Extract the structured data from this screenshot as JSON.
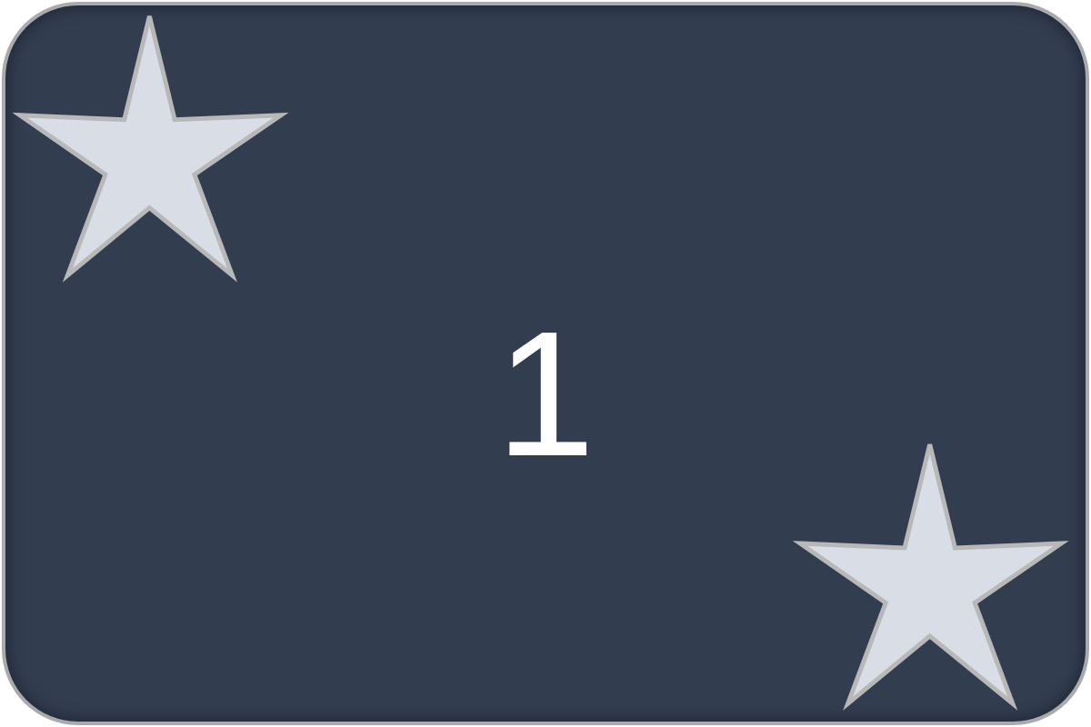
{
  "card": {
    "value": "1",
    "background_color": "#323d50",
    "border_color": "#a8aaad",
    "number_color": "#ffffff",
    "star_fill": "#d8dde6",
    "star_stroke": "#b8b8b8",
    "icons": [
      "star-icon",
      "star-icon"
    ]
  }
}
